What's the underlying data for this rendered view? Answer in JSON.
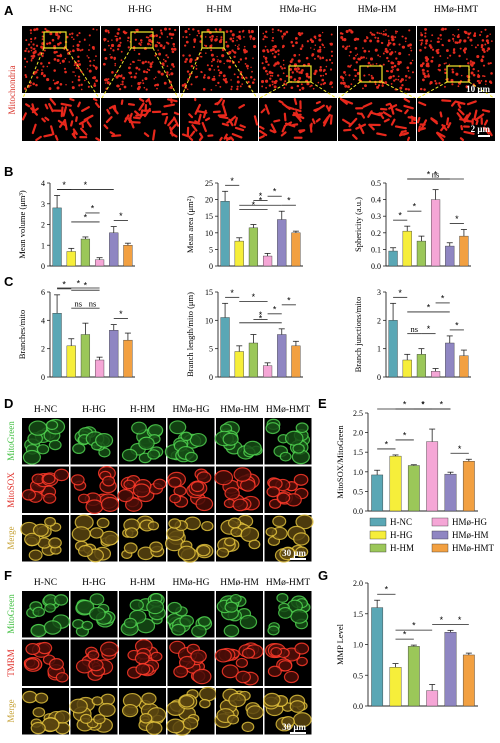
{
  "groups": [
    "H-NC",
    "H-HG",
    "H-HM",
    "HMø-HG",
    "HMø-HM",
    "HMø-HMT"
  ],
  "colors": [
    "#5aa7b5",
    "#f6ee3a",
    "#9bc759",
    "#f5a6d6",
    "#8f86c2",
    "#f2a041"
  ],
  "panels": {
    "A": {
      "label": "A",
      "row_label": "Mitochondria",
      "scale_top": "10 μm",
      "scale_bottom": "2 μm"
    },
    "B": {
      "label": "B"
    },
    "C": {
      "label": "C"
    },
    "D": {
      "label": "D",
      "row_labels": [
        "MitoGreen",
        "MitoSOX",
        "Merge"
      ],
      "row_colors": [
        "#3fbf3f",
        "#e0302a",
        "#c8a43a"
      ],
      "scale": "30 μm"
    },
    "E": {
      "label": "E"
    },
    "F": {
      "label": "F",
      "row_labels": [
        "MitoGreen",
        "TMRM",
        "Merge"
      ],
      "row_colors": [
        "#3fbf3f",
        "#e0302a",
        "#c8a43a"
      ],
      "scale": "30 μm"
    },
    "G": {
      "label": "G"
    }
  },
  "legend": {
    "items": [
      "H-NC",
      "HMø-HG",
      "H-HG",
      "HMø-HM",
      "H-HM",
      "HMø-HMT"
    ],
    "color_index": [
      0,
      3,
      1,
      4,
      2,
      5
    ]
  },
  "chart_data": [
    {
      "id": "B1",
      "type": "bar",
      "ylabel": "Mean volume (μm³)",
      "ylim": [
        0,
        4
      ],
      "ticks": [
        "0",
        "1",
        "2",
        "3",
        "4"
      ],
      "values": [
        2.8,
        0.7,
        1.3,
        0.3,
        1.6,
        1.0
      ],
      "errors": [
        0.6,
        0.15,
        0.1,
        0.1,
        0.3,
        0.1
      ],
      "sig": [
        {
          "a": 0,
          "b": 1,
          "t": "*",
          "lvl": 0
        },
        {
          "a": 0,
          "b": 4,
          "t": "*",
          "lvl": 0
        },
        {
          "a": 1,
          "b": 3,
          "t": "*",
          "lvl": 1
        },
        {
          "a": 4,
          "b": 5,
          "t": "*",
          "lvl": 0
        },
        {
          "a": 2,
          "b": 3,
          "t": "*",
          "lvl": 2
        }
      ]
    },
    {
      "id": "B2",
      "type": "bar",
      "ylabel": "Mean area (μm²)",
      "ylim": [
        0,
        25
      ],
      "ticks": [
        "0",
        "5",
        "10",
        "15",
        "20",
        "25"
      ],
      "values": [
        19.5,
        7.5,
        11.5,
        3.0,
        14.0,
        10.0
      ],
      "errors": [
        3.0,
        1.0,
        1.0,
        0.8,
        2.5,
        0.5
      ],
      "sig": [
        {
          "a": 0,
          "b": 1,
          "t": "*",
          "lvl": 0
        },
        {
          "a": 1,
          "b": 4,
          "t": "*",
          "lvl": 0
        },
        {
          "a": 1,
          "b": 3,
          "t": "*",
          "lvl": 1
        },
        {
          "a": 3,
          "b": 4,
          "t": "*",
          "lvl": 1
        },
        {
          "a": 4,
          "b": 5,
          "t": "*",
          "lvl": 0
        },
        {
          "a": 2,
          "b": 3,
          "t": "*",
          "lvl": 2
        }
      ]
    },
    {
      "id": "B3",
      "type": "bar",
      "ylabel": "Sphericity (a.u.)",
      "ylim": [
        0,
        0.5
      ],
      "ticks": [
        "0.0",
        "0.1",
        "0.2",
        "0.3",
        "0.4",
        "0.5"
      ],
      "values": [
        0.09,
        0.21,
        0.15,
        0.4,
        0.12,
        0.18
      ],
      "errors": [
        0.02,
        0.03,
        0.03,
        0.06,
        0.02,
        0.04
      ],
      "sig": [
        {
          "a": 0,
          "b": 1,
          "t": "*",
          "lvl": 0
        },
        {
          "a": 1,
          "b": 2,
          "t": "*",
          "lvl": 1
        },
        {
          "a": 1,
          "b": 4,
          "t": "*",
          "lvl": 2
        },
        {
          "a": 2,
          "b": 4,
          "t": "ns",
          "lvl": 3
        },
        {
          "a": 1,
          "b": 5,
          "t": "*",
          "lvl": 4
        },
        {
          "a": 4,
          "b": 5,
          "t": "*",
          "lvl": 0
        }
      ]
    },
    {
      "id": "C1",
      "type": "bar",
      "ylabel": "Branches/mito",
      "ylim": [
        0,
        6
      ],
      "ticks": [
        "0",
        "2",
        "4",
        "6"
      ],
      "values": [
        4.5,
        2.2,
        3.0,
        1.2,
        3.3,
        2.6
      ],
      "errors": [
        1.3,
        0.5,
        0.8,
        0.2,
        0.4,
        0.5
      ],
      "sig": [
        {
          "a": 0,
          "b": 1,
          "t": "*",
          "lvl": 0
        },
        {
          "a": 1,
          "b": 2,
          "t": "ns",
          "lvl": 1
        },
        {
          "a": 2,
          "b": 3,
          "t": "ns",
          "lvl": 1
        },
        {
          "a": 0,
          "b": 3,
          "t": "*",
          "lvl": 2
        },
        {
          "a": 1,
          "b": 3,
          "t": "*",
          "lvl": 3
        },
        {
          "a": 4,
          "b": 5,
          "t": "*",
          "lvl": 0
        }
      ]
    },
    {
      "id": "C2",
      "type": "bar",
      "ylabel": "Branch length/mito (μm)",
      "ylim": [
        0,
        15
      ],
      "ticks": [
        "0",
        "5",
        "10",
        "15"
      ],
      "values": [
        10.5,
        4.5,
        6.0,
        2.0,
        7.5,
        5.5
      ],
      "errors": [
        2.5,
        1.0,
        1.5,
        0.5,
        1.0,
        0.8
      ],
      "sig": [
        {
          "a": 0,
          "b": 1,
          "t": "*",
          "lvl": 0
        },
        {
          "a": 1,
          "b": 4,
          "t": "*",
          "lvl": 0
        },
        {
          "a": 2,
          "b": 3,
          "t": "*",
          "lvl": 1
        },
        {
          "a": 3,
          "b": 4,
          "t": "*",
          "lvl": 1
        },
        {
          "a": 4,
          "b": 5,
          "t": "*",
          "lvl": 2
        },
        {
          "a": 1,
          "b": 3,
          "t": "*",
          "lvl": 3
        }
      ]
    },
    {
      "id": "C3",
      "type": "bar",
      "ylabel": "Branch junctions/mito",
      "ylim": [
        0,
        3
      ],
      "ticks": [
        "0",
        "1",
        "2",
        "3"
      ],
      "values": [
        2.0,
        0.6,
        0.8,
        0.2,
        1.2,
        0.75
      ],
      "errors": [
        0.6,
        0.2,
        0.2,
        0.1,
        0.25,
        0.2
      ],
      "sig": [
        {
          "a": 0,
          "b": 1,
          "t": "*",
          "lvl": 0
        },
        {
          "a": 1,
          "b": 2,
          "t": "ns",
          "lvl": 1
        },
        {
          "a": 2,
          "b": 3,
          "t": "*",
          "lvl": 1
        },
        {
          "a": 1,
          "b": 4,
          "t": "*",
          "lvl": 2
        },
        {
          "a": 4,
          "b": 5,
          "t": "*",
          "lvl": 0
        },
        {
          "a": 3,
          "b": 4,
          "t": "*",
          "lvl": 3
        }
      ]
    },
    {
      "id": "E",
      "type": "bar",
      "ylabel": "MitoSOX/MitoGreen",
      "ylim": [
        0,
        2.5
      ],
      "ticks": [
        "0.0",
        "0.5",
        "1.0",
        "1.5",
        "2.0",
        "2.5"
      ],
      "values": [
        0.92,
        1.4,
        1.16,
        1.77,
        0.94,
        1.27
      ],
      "errors": [
        0.12,
        0.03,
        0.02,
        0.32,
        0.05,
        0.05
      ],
      "sig": [
        {
          "a": 0,
          "b": 1,
          "t": "*",
          "lvl": 0
        },
        {
          "a": 1,
          "b": 2,
          "t": "*",
          "lvl": 1
        },
        {
          "a": 2,
          "b": 3,
          "t": "*",
          "lvl": 2
        },
        {
          "a": 3,
          "b": 4,
          "t": "*",
          "lvl": 2
        },
        {
          "a": 1,
          "b": 4,
          "t": "*",
          "lvl": 3
        },
        {
          "a": 0,
          "b": 3,
          "t": "*",
          "lvl": 4
        },
        {
          "a": 4,
          "b": 5,
          "t": "*",
          "lvl": 0
        }
      ]
    },
    {
      "id": "G",
      "type": "bar",
      "ylabel": "MMP Level",
      "ylim": [
        0,
        2.0
      ],
      "ticks": [
        "0.0",
        "0.5",
        "1.0",
        "1.5",
        "2.0"
      ],
      "values": [
        1.6,
        0.63,
        0.97,
        0.25,
        1.2,
        0.83
      ],
      "errors": [
        0.12,
        0.06,
        0.02,
        0.1,
        0.03,
        0.03
      ],
      "sig": [
        {
          "a": 0,
          "b": 1,
          "t": "*",
          "lvl": 0
        },
        {
          "a": 1,
          "b": 2,
          "t": "*",
          "lvl": 0
        },
        {
          "a": 1,
          "b": 3,
          "t": "*",
          "lvl": 1
        },
        {
          "a": 3,
          "b": 4,
          "t": "*",
          "lvl": 0
        },
        {
          "a": 4,
          "b": 5,
          "t": "*",
          "lvl": 0
        }
      ]
    }
  ]
}
